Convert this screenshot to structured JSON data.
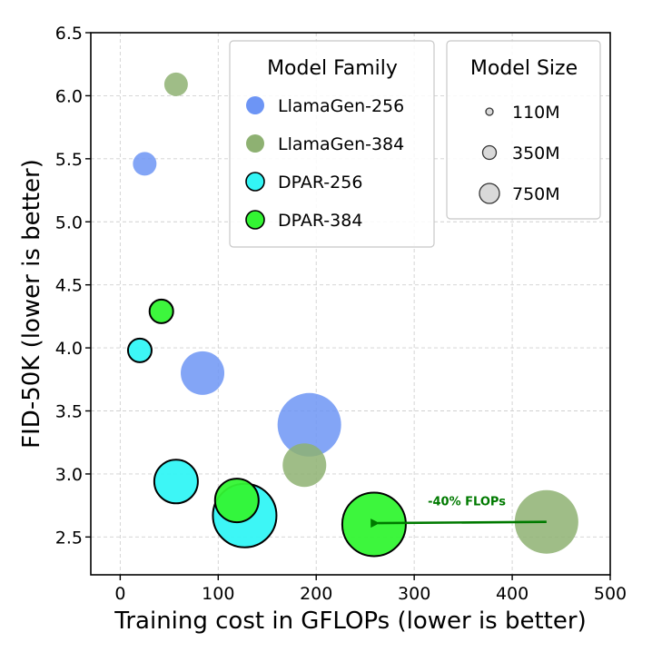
{
  "chart_data": {
    "type": "scatter",
    "xlabel": "Training cost in GFLOPs (lower is better)",
    "ylabel": "FID-50K (lower is better)",
    "xlim": [
      -30,
      500
    ],
    "ylim": [
      2.2,
      6.5
    ],
    "xticks": [
      0,
      100,
      200,
      300,
      400,
      500
    ],
    "yticks": [
      2.5,
      3.0,
      3.5,
      4.0,
      4.5,
      5.0,
      5.5,
      6.0,
      6.5
    ],
    "grid": true,
    "series": [
      {
        "name": "LlamaGen-256",
        "color": "#6d95f5",
        "outline": false,
        "points": [
          {
            "x": 25,
            "y": 5.46,
            "size": "110M"
          },
          {
            "x": 84,
            "y": 3.8,
            "size": "350M"
          },
          {
            "x": 193,
            "y": 3.39,
            "size": "750M"
          }
        ]
      },
      {
        "name": "LlamaGen-384",
        "color": "#8eb172",
        "outline": false,
        "points": [
          {
            "x": 57,
            "y": 6.09,
            "size": "110M"
          },
          {
            "x": 188,
            "y": 3.07,
            "size": "350M"
          },
          {
            "x": 435,
            "y": 2.62,
            "size": "750M"
          }
        ]
      },
      {
        "name": "DPAR-256",
        "color": "#33f5f5",
        "outline": true,
        "points": [
          {
            "x": 20,
            "y": 3.98,
            "size": "110M"
          },
          {
            "x": 57,
            "y": 2.94,
            "size": "350M"
          },
          {
            "x": 127,
            "y": 2.67,
            "size": "750M"
          }
        ]
      },
      {
        "name": "DPAR-384",
        "color": "#33f533",
        "outline": true,
        "points": [
          {
            "x": 42,
            "y": 4.29,
            "size": "110M"
          },
          {
            "x": 119,
            "y": 2.79,
            "size": "350M"
          },
          {
            "x": 259,
            "y": 2.6,
            "size": "750M"
          }
        ]
      }
    ],
    "legend_family": {
      "title": "Model Family",
      "placement": "top-center",
      "entries": [
        "LlamaGen-256",
        "LlamaGen-384",
        "DPAR-256",
        "DPAR-384"
      ]
    },
    "legend_size": {
      "title": "Model Size",
      "placement": "top-right",
      "entries": [
        "110M",
        "350M",
        "750M"
      ]
    },
    "annotation": {
      "text": "-40% FLOPs",
      "color": "#007a00",
      "from": {
        "x": 435,
        "y": 2.62
      },
      "to": {
        "x": 263,
        "y": 2.61
      }
    }
  }
}
